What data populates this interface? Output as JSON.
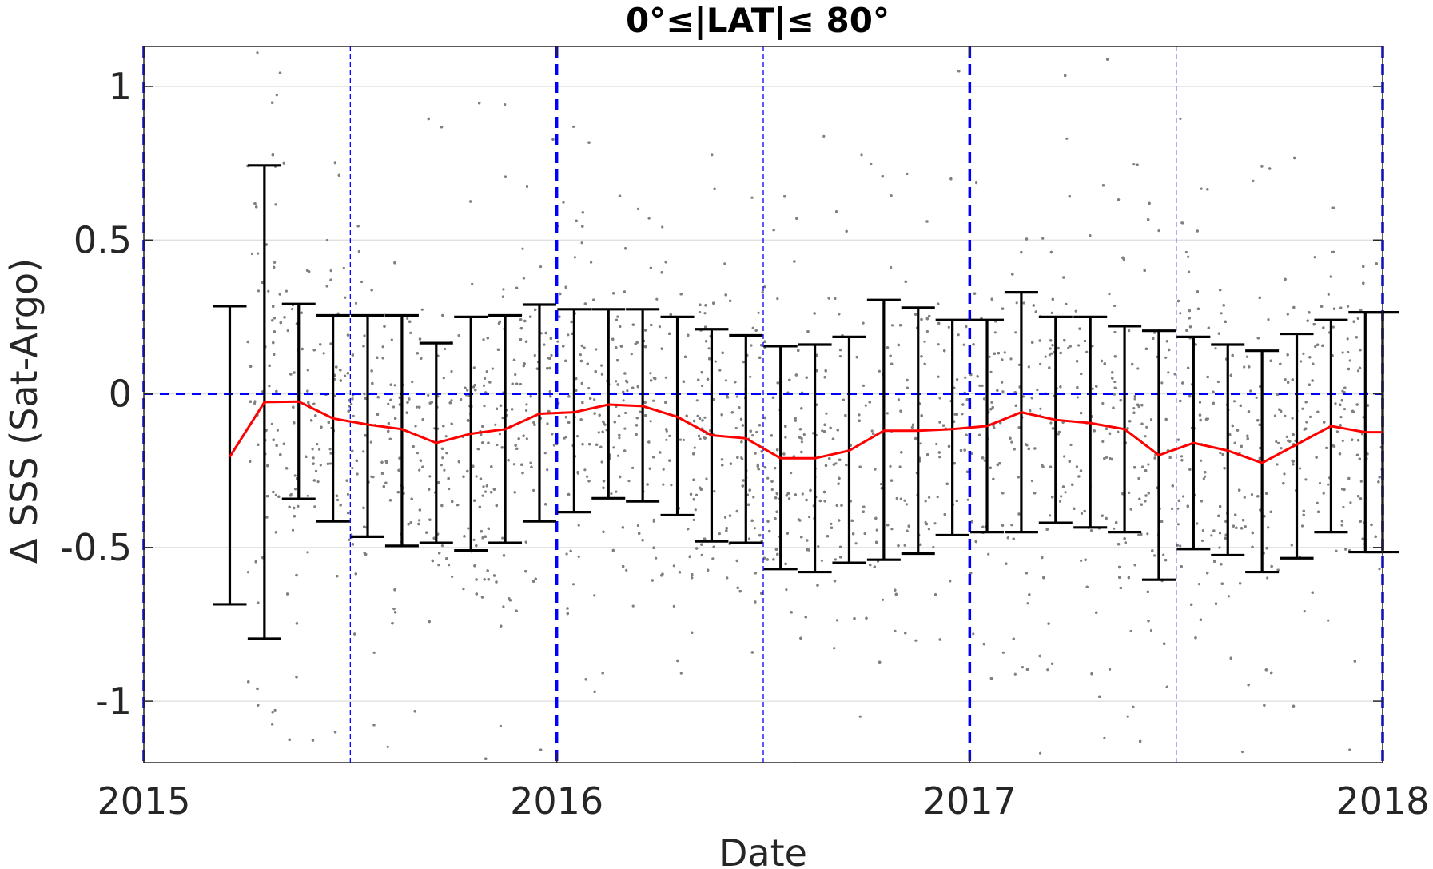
{
  "chart_data": {
    "type": "scatter",
    "title": "0°≤|LAT|≤ 80°",
    "xlabel": "Date",
    "ylabel": "Δ SSS (Sat-Argo)",
    "xlim": [
      2015,
      2018
    ],
    "ylim": [
      -1.2,
      1.13
    ],
    "x_ticks": [
      2015,
      2016,
      2017,
      2018
    ],
    "x_tick_labels": [
      "2015",
      "2016",
      "2017",
      "2018"
    ],
    "y_ticks": [
      -1,
      -0.5,
      0,
      0.5,
      1
    ],
    "y_tick_labels": [
      "-1",
      "-0.5",
      "0",
      "0.5",
      "1"
    ],
    "grid": "horizontal",
    "colors": {
      "scatter": "#808080",
      "mean_line": "#ff0000",
      "error_bars": "#000000",
      "reference_lines": "#0000ff",
      "grid": "#dcdcdc"
    },
    "reference_lines": {
      "horizontal_y": 0,
      "year_boundaries": [
        2015,
        2016,
        2017,
        2018
      ],
      "mid_years": [
        2015.5,
        2016.5,
        2017.5
      ]
    },
    "scatter_density": {
      "x_start": 2015.25,
      "x_end": 2018,
      "y_range": [
        -1.2,
        1.13
      ]
    },
    "monthly_stats": [
      {
        "x": 2015.208,
        "mean": -0.205,
        "upper": 0.285,
        "lower": -0.685
      },
      {
        "x": 2015.292,
        "mean": -0.027,
        "upper": 0.743,
        "lower": -0.797
      },
      {
        "x": 2015.375,
        "mean": -0.025,
        "upper": 0.292,
        "lower": -0.342
      },
      {
        "x": 2015.458,
        "mean": -0.08,
        "upper": 0.255,
        "lower": -0.415
      },
      {
        "x": 2015.542,
        "mean": -0.1,
        "upper": 0.255,
        "lower": -0.465
      },
      {
        "x": 2015.625,
        "mean": -0.115,
        "upper": 0.255,
        "lower": -0.495
      },
      {
        "x": 2015.708,
        "mean": -0.16,
        "upper": 0.165,
        "lower": -0.485
      },
      {
        "x": 2015.792,
        "mean": -0.13,
        "upper": 0.25,
        "lower": -0.51
      },
      {
        "x": 2015.875,
        "mean": -0.115,
        "upper": 0.255,
        "lower": -0.485
      },
      {
        "x": 2015.958,
        "mean": -0.065,
        "upper": 0.29,
        "lower": -0.415
      },
      {
        "x": 2016.042,
        "mean": -0.06,
        "upper": 0.275,
        "lower": -0.385
      },
      {
        "x": 2016.125,
        "mean": -0.035,
        "upper": 0.275,
        "lower": -0.34
      },
      {
        "x": 2016.208,
        "mean": -0.04,
        "upper": 0.275,
        "lower": -0.35
      },
      {
        "x": 2016.292,
        "mean": -0.075,
        "upper": 0.25,
        "lower": -0.395
      },
      {
        "x": 2016.375,
        "mean": -0.135,
        "upper": 0.21,
        "lower": -0.48
      },
      {
        "x": 2016.458,
        "mean": -0.145,
        "upper": 0.19,
        "lower": -0.485
      },
      {
        "x": 2016.542,
        "mean": -0.21,
        "upper": 0.155,
        "lower": -0.57
      },
      {
        "x": 2016.625,
        "mean": -0.21,
        "upper": 0.16,
        "lower": -0.58
      },
      {
        "x": 2016.708,
        "mean": -0.185,
        "upper": 0.185,
        "lower": -0.55
      },
      {
        "x": 2016.792,
        "mean": -0.12,
        "upper": 0.305,
        "lower": -0.54
      },
      {
        "x": 2016.875,
        "mean": -0.12,
        "upper": 0.28,
        "lower": -0.52
      },
      {
        "x": 2016.958,
        "mean": -0.115,
        "upper": 0.24,
        "lower": -0.46
      },
      {
        "x": 2017.042,
        "mean": -0.105,
        "upper": 0.24,
        "lower": -0.45
      },
      {
        "x": 2017.125,
        "mean": -0.06,
        "upper": 0.33,
        "lower": -0.45
      },
      {
        "x": 2017.208,
        "mean": -0.085,
        "upper": 0.25,
        "lower": -0.42
      },
      {
        "x": 2017.292,
        "mean": -0.095,
        "upper": 0.25,
        "lower": -0.435
      },
      {
        "x": 2017.375,
        "mean": -0.115,
        "upper": 0.22,
        "lower": -0.45
      },
      {
        "x": 2017.458,
        "mean": -0.2,
        "upper": 0.205,
        "lower": -0.605
      },
      {
        "x": 2017.542,
        "mean": -0.16,
        "upper": 0.185,
        "lower": -0.505
      },
      {
        "x": 2017.625,
        "mean": -0.185,
        "upper": 0.16,
        "lower": -0.525
      },
      {
        "x": 2017.708,
        "mean": -0.225,
        "upper": 0.14,
        "lower": -0.58
      },
      {
        "x": 2017.792,
        "mean": -0.165,
        "upper": 0.195,
        "lower": -0.535
      },
      {
        "x": 2017.875,
        "mean": -0.105,
        "upper": 0.24,
        "lower": -0.45
      },
      {
        "x": 2017.958,
        "mean": -0.125,
        "upper": 0.265,
        "lower": -0.515
      },
      {
        "x": 2018.0,
        "mean": -0.125,
        "upper": 0.265,
        "lower": -0.515
      }
    ]
  }
}
